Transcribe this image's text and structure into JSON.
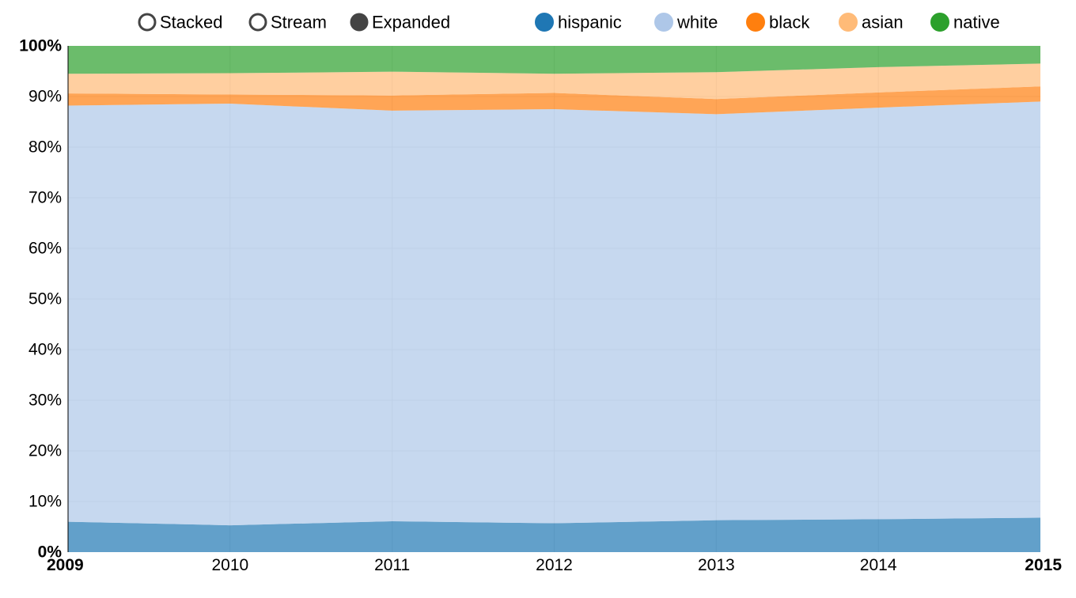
{
  "controls": [
    {
      "label": "Stacked",
      "selected": false
    },
    {
      "label": "Stream",
      "selected": false
    },
    {
      "label": "Expanded",
      "selected": true
    }
  ],
  "chart_data": {
    "type": "area",
    "mode": "expanded",
    "x": [
      2009,
      2010,
      2011,
      2012,
      2013,
      2014,
      2015
    ],
    "x_tick_labels": [
      "2009",
      "2010",
      "2011",
      "2012",
      "2013",
      "2014",
      "2015"
    ],
    "y_tick_labels": [
      "0%",
      "10%",
      "20%",
      "30%",
      "40%",
      "50%",
      "60%",
      "70%",
      "80%",
      "90%",
      "100%"
    ],
    "ylim": [
      0,
      100
    ],
    "grid": true,
    "legend_position": "top-right",
    "series": [
      {
        "name": "hispanic",
        "color": "#1f77b4",
        "values": [
          6.0,
          5.3,
          6.1,
          5.7,
          6.3,
          6.5,
          6.8
        ]
      },
      {
        "name": "white",
        "color": "#aec7e8",
        "values": [
          82.2,
          83.3,
          81.1,
          81.8,
          80.2,
          81.3,
          82.2
        ]
      },
      {
        "name": "black",
        "color": "#ff7f0e",
        "values": [
          2.4,
          1.8,
          3.0,
          3.2,
          3.0,
          3.0,
          3.0
        ]
      },
      {
        "name": "asian",
        "color": "#ffbb78",
        "values": [
          3.9,
          4.2,
          4.7,
          3.8,
          5.3,
          5.0,
          4.5
        ]
      },
      {
        "name": "native",
        "color": "#2ca02c",
        "values": [
          5.5,
          5.4,
          5.1,
          5.5,
          5.2,
          4.2,
          3.5
        ]
      }
    ]
  }
}
